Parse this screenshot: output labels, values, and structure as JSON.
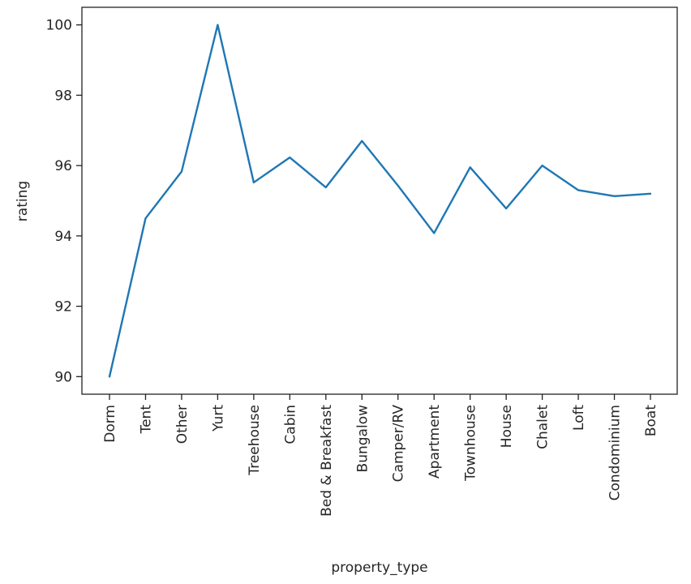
{
  "chart_data": {
    "type": "line",
    "title": "",
    "xlabel": "property_type",
    "ylabel": "rating",
    "categories": [
      "Dorm",
      "Tent",
      "Other",
      "Yurt",
      "Treehouse",
      "Cabin",
      "Bed & Breakfast",
      "Bungalow",
      "Camper/RV",
      "Apartment",
      "Townhouse",
      "House",
      "Chalet",
      "Loft",
      "Condominium",
      "Boat"
    ],
    "series": [
      {
        "values": [
          90.0,
          94.5,
          95.83,
          100.0,
          95.52,
          96.23,
          95.38,
          96.7,
          95.43,
          94.08,
          95.95,
          94.78,
          96.0,
          95.3,
          95.13,
          95.2
        ]
      }
    ],
    "ylim": [
      89.5,
      100.5
    ],
    "yticks": [
      90,
      92,
      94,
      96,
      98,
      100
    ],
    "grid": false,
    "colors": {
      "line": "#1f77b4"
    }
  }
}
